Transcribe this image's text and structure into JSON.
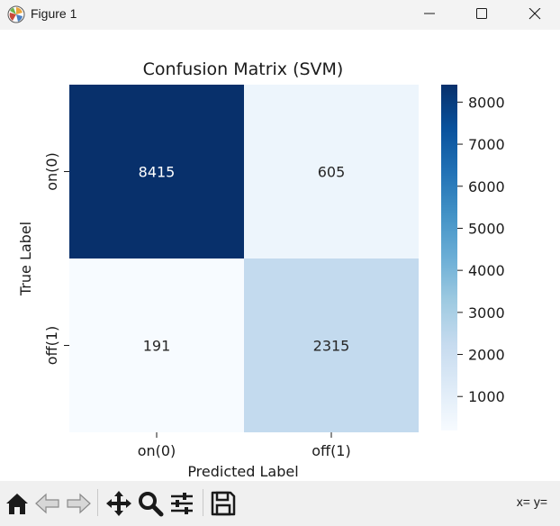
{
  "window": {
    "title": "Figure 1"
  },
  "toolbar": {
    "tools": [
      "home-icon",
      "back-icon",
      "forward-icon",
      "pan-icon",
      "zoom-icon",
      "configure-subplots-icon",
      "save-icon"
    ],
    "coords": "x= y="
  },
  "chart_data": {
    "type": "heatmap",
    "title": "Confusion Matrix (SVM)",
    "xlabel": "Predicted Label",
    "ylabel": "True Label",
    "x_categories": [
      "on(0)",
      "off(1)"
    ],
    "y_categories": [
      "on(0)",
      "off(1)"
    ],
    "values": [
      [
        8415,
        605
      ],
      [
        191,
        2315
      ]
    ],
    "colormap": "Blues",
    "colorbar": {
      "ticks": [
        1000,
        2000,
        3000,
        4000,
        5000,
        6000,
        7000,
        8000
      ],
      "tick_labels": [
        "1000",
        "2000",
        "3000",
        "4000",
        "5000",
        "6000",
        "7000",
        "8000"
      ],
      "range": [
        191,
        8415
      ]
    },
    "annotation_colors": {
      "dark": "#ffffff",
      "light": "#262626"
    }
  }
}
